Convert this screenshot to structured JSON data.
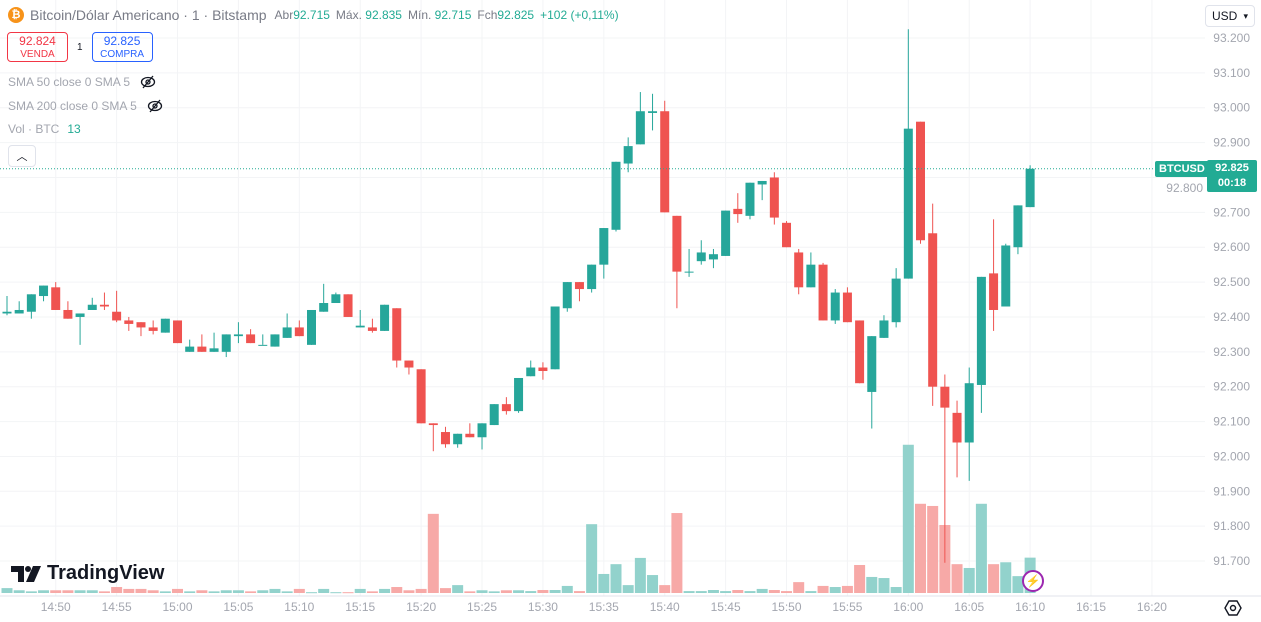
{
  "header": {
    "symbol_icon": "bitcoin-icon",
    "title": "Bitcoin/Dólar Americano · 1 · Bitstamp",
    "open_label": "Abr",
    "open": "92.715",
    "high_label": "Máx.",
    "high": "92.835",
    "low_label": "Mín.",
    "low": "92.715",
    "close_label": "Fch",
    "close": "92.825",
    "change": "+102 (+0,11%)"
  },
  "trade": {
    "sell_price": "92.824",
    "sell_label": "VENDA",
    "spread": "1",
    "buy_price": "92.825",
    "buy_label": "COMPRA"
  },
  "indicators": [
    {
      "label": "SMA 50 close 0 SMA 5",
      "icon": "eye-off-icon"
    },
    {
      "label": "SMA 200 close 0 SMA 5",
      "icon": "eye-off-icon"
    },
    {
      "label": "Vol · BTC",
      "value": "13"
    }
  ],
  "currency": "USD",
  "logo": "TradingView",
  "last_price": {
    "symbol": "BTCUSD",
    "price": "92.825",
    "countdown": "00:18"
  },
  "colors": {
    "up": "#26a69a",
    "down": "#ef5350",
    "up_vol": "#92d2cc",
    "down_vol": "#f7a9a7",
    "accent": "#22ab94"
  },
  "chart_data": {
    "type": "candlestick",
    "title": "Bitcoin/Dólar Americano · 1 · Bitstamp",
    "ylim": [
      91620,
      93250
    ],
    "y_ticks": [
      "93.200",
      "93.100",
      "93.000",
      "92.900",
      "92.800",
      "92.700",
      "92.600",
      "92.500",
      "92.400",
      "92.300",
      "92.200",
      "92.100",
      "92.000",
      "91.900",
      "91.800",
      "91.700"
    ],
    "y_tick_values": [
      93200,
      93100,
      93000,
      92900,
      92800,
      92700,
      92600,
      92500,
      92400,
      92300,
      92200,
      92100,
      92000,
      91900,
      91800,
      91700
    ],
    "x_ticks": [
      "14:50",
      "14:55",
      "15:00",
      "15:05",
      "15:10",
      "15:15",
      "15:20",
      "15:25",
      "15:30",
      "15:35",
      "15:40",
      "15:45",
      "15:50",
      "15:55",
      "16:00",
      "16:05",
      "16:10",
      "16:15",
      "16:20"
    ],
    "x_start": "14:46",
    "interval_minutes": 1,
    "last_price": 92825,
    "columns": [
      "time",
      "open",
      "high",
      "low",
      "close",
      "volume"
    ],
    "candles": [
      [
        "14:46",
        92410,
        92460,
        92405,
        92415,
        1.8
      ],
      [
        "14:47",
        92410,
        92445,
        92410,
        92420,
        1.0
      ],
      [
        "14:48",
        92415,
        92465,
        92395,
        92465,
        0.6
      ],
      [
        "14:49",
        92460,
        92490,
        92445,
        92490,
        1.0
      ],
      [
        "14:50",
        92485,
        92500,
        92420,
        92420,
        1.0
      ],
      [
        "14:51",
        92420,
        92445,
        92395,
        92395,
        1.0
      ],
      [
        "14:52",
        92400,
        92410,
        92320,
        92410,
        1.0
      ],
      [
        "14:53",
        92420,
        92455,
        92420,
        92435,
        1.0
      ],
      [
        "14:54",
        92435,
        92470,
        92420,
        92430,
        0.6
      ],
      [
        "14:55",
        92415,
        92475,
        92385,
        92390,
        2.2
      ],
      [
        "14:56",
        92390,
        92400,
        92360,
        92380,
        1.5
      ],
      [
        "14:57",
        92385,
        92385,
        92345,
        92370,
        1.5
      ],
      [
        "14:58",
        92370,
        92390,
        92350,
        92360,
        1.0
      ],
      [
        "14:59",
        92355,
        92395,
        92355,
        92395,
        0.6
      ],
      [
        "15:00",
        92390,
        92390,
        92325,
        92325,
        1.5
      ],
      [
        "15:01",
        92300,
        92335,
        92300,
        92315,
        0.6
      ],
      [
        "15:02",
        92315,
        92350,
        92300,
        92300,
        1.0
      ],
      [
        "15:03",
        92300,
        92355,
        92300,
        92310,
        0.6
      ],
      [
        "15:04",
        92300,
        92350,
        92285,
        92350,
        1.0
      ],
      [
        "15:05",
        92345,
        92385,
        92325,
        92350,
        1.0
      ],
      [
        "15:06",
        92350,
        92365,
        92325,
        92325,
        0.6
      ],
      [
        "15:07",
        92320,
        92350,
        92320,
        92320,
        1.0
      ],
      [
        "15:08",
        92315,
        92350,
        92315,
        92350,
        1.5
      ],
      [
        "15:09",
        92340,
        92410,
        92340,
        92370,
        0.6
      ],
      [
        "15:10",
        92370,
        92390,
        92345,
        92345,
        1.5
      ],
      [
        "15:11",
        92320,
        92420,
        92320,
        92420,
        0.3
      ],
      [
        "15:12",
        92415,
        92495,
        92415,
        92440,
        1.5
      ],
      [
        "15:13",
        92440,
        92470,
        92440,
        92465,
        0.3
      ],
      [
        "15:14",
        92465,
        92465,
        92400,
        92400,
        0.3
      ],
      [
        "15:15",
        92370,
        92420,
        92370,
        92375,
        1.5
      ],
      [
        "15:16",
        92370,
        92395,
        92355,
        92360,
        0.6
      ],
      [
        "15:17",
        92360,
        92435,
        92360,
        92435,
        1.5
      ],
      [
        "15:18",
        92425,
        92425,
        92255,
        92275,
        2.2
      ],
      [
        "15:19",
        92275,
        92275,
        92235,
        92255,
        1.0
      ],
      [
        "15:20",
        92250,
        92250,
        92095,
        92095,
        1.5
      ],
      [
        "15:21",
        92095,
        92095,
        92015,
        92090,
        29.1
      ],
      [
        "15:22",
        92070,
        92085,
        92025,
        92035,
        1.8
      ],
      [
        "15:23",
        92035,
        92065,
        92025,
        92065,
        2.9
      ],
      [
        "15:24",
        92065,
        92095,
        92055,
        92055,
        0.6
      ],
      [
        "15:25",
        92055,
        92095,
        92020,
        92095,
        1.0
      ],
      [
        "15:26",
        92090,
        92150,
        92090,
        92150,
        0.6
      ],
      [
        "15:27",
        92150,
        92170,
        92120,
        92130,
        1.0
      ],
      [
        "15:28",
        92130,
        92225,
        92125,
        92225,
        1.0
      ],
      [
        "15:29",
        92230,
        92275,
        92230,
        92255,
        0.7
      ],
      [
        "15:30",
        92255,
        92270,
        92220,
        92245,
        1.1
      ],
      [
        "15:31",
        92250,
        92430,
        92250,
        92430,
        1.1
      ],
      [
        "15:32",
        92425,
        92500,
        92415,
        92500,
        2.6
      ],
      [
        "15:33",
        92500,
        92500,
        92445,
        92480,
        0.7
      ],
      [
        "15:34",
        92480,
        92550,
        92470,
        92550,
        25.3
      ],
      [
        "15:35",
        92550,
        92655,
        92510,
        92655,
        7.0
      ],
      [
        "15:36",
        92650,
        92845,
        92645,
        92845,
        10.6
      ],
      [
        "15:37",
        92840,
        92915,
        92815,
        92890,
        2.9
      ],
      [
        "15:38",
        92895,
        93045,
        92895,
        92990,
        12.9
      ],
      [
        "15:39",
        92985,
        93040,
        92935,
        92990,
        6.6
      ],
      [
        "15:40",
        92990,
        93020,
        92700,
        92700,
        2.9
      ],
      [
        "15:41",
        92690,
        92690,
        92425,
        92530,
        29.4
      ],
      [
        "15:42",
        92530,
        92595,
        92515,
        92530,
        0.7
      ],
      [
        "15:43",
        92560,
        92620,
        92550,
        92585,
        0.7
      ],
      [
        "15:44",
        92565,
        92595,
        92540,
        92580,
        1.1
      ],
      [
        "15:45",
        92575,
        92705,
        92575,
        92705,
        0.7
      ],
      [
        "15:46",
        92710,
        92755,
        92670,
        92695,
        1.1
      ],
      [
        "15:47",
        92690,
        92785,
        92680,
        92785,
        0.7
      ],
      [
        "15:48",
        92780,
        92790,
        92735,
        92790,
        1.5
      ],
      [
        "15:49",
        92800,
        92815,
        92665,
        92685,
        1.1
      ],
      [
        "15:50",
        92670,
        92675,
        92600,
        92600,
        0.7
      ],
      [
        "15:51",
        92585,
        92595,
        92465,
        92485,
        4.0
      ],
      [
        "15:52",
        92485,
        92585,
        92485,
        92550,
        0.7
      ],
      [
        "15:53",
        92550,
        92555,
        92390,
        92390,
        2.6
      ],
      [
        "15:54",
        92390,
        92480,
        92380,
        92470,
        2.2
      ],
      [
        "15:55",
        92470,
        92485,
        92385,
        92385,
        2.6
      ],
      [
        "15:56",
        92390,
        92390,
        92210,
        92210,
        10.3
      ],
      [
        "15:57",
        92185,
        92345,
        92080,
        92345,
        5.9
      ],
      [
        "15:58",
        92340,
        92405,
        92340,
        92390,
        5.5
      ],
      [
        "15:59",
        92385,
        92540,
        92370,
        92510,
        2.2
      ],
      [
        "16:00",
        92510,
        93225,
        92510,
        92940,
        54.5
      ],
      [
        "16:01",
        92960,
        92960,
        92610,
        92620,
        32.8
      ],
      [
        "16:02",
        92640,
        92725,
        92145,
        92200,
        32.0
      ],
      [
        "16:03",
        92200,
        92235,
        91695,
        92140,
        25.0
      ],
      [
        "16:04",
        92125,
        92160,
        91940,
        92040,
        10.6
      ],
      [
        "16:05",
        92040,
        92255,
        91930,
        92210,
        9.2
      ],
      [
        "16:06",
        92205,
        92515,
        92125,
        92515,
        32.8
      ],
      [
        "16:07",
        92525,
        92680,
        92360,
        92420,
        10.6
      ],
      [
        "16:08",
        92430,
        92610,
        92430,
        92605,
        11.3
      ],
      [
        "16:09",
        92600,
        92720,
        92580,
        92720,
        6.2
      ],
      [
        "16:10",
        92715,
        92835,
        92715,
        92825,
        13.0
      ]
    ]
  }
}
